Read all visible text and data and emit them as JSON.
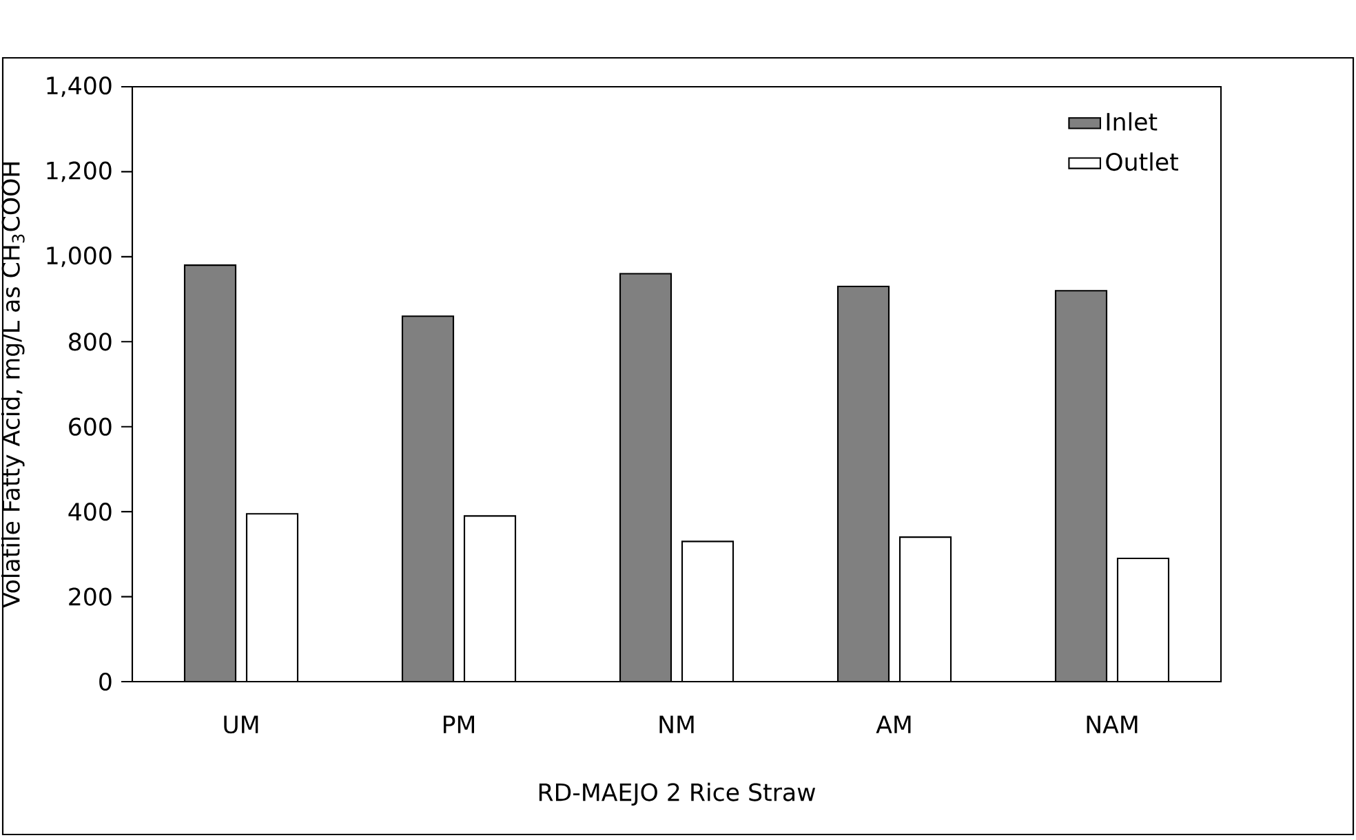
{
  "chart_data": {
    "type": "bar",
    "xlabel": "RD-MAEJO 2 Rice Straw",
    "ylabel": "Volatile Fatty Acid,  mg/L as CH$_{3}$COOH",
    "categories": [
      "UM",
      "PM",
      "NM",
      "AM",
      "NAM"
    ],
    "series": [
      {
        "name": "Inlet",
        "color": "#808080",
        "values": [
          980,
          860,
          960,
          930,
          920
        ]
      },
      {
        "name": "Outlet",
        "color": "#ffffff",
        "values": [
          395,
          390,
          330,
          340,
          290
        ]
      }
    ],
    "ylim": [
      0,
      1400
    ],
    "yticks": [
      0,
      200,
      400,
      600,
      800,
      {
        "value": 1000,
        "label": "1,000"
      },
      {
        "value": 1200,
        "label": "1,200"
      },
      {
        "value": 1400,
        "label": "1,400"
      }
    ],
    "grid": false,
    "legend": "top right"
  }
}
